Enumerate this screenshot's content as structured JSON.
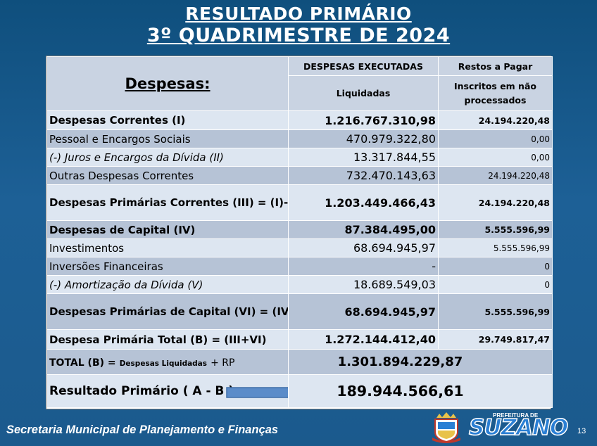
{
  "title": {
    "line1": "RESULTADO PRIMÁRIO",
    "line2": "3º QUADRIMESTRE DE 2024"
  },
  "table": {
    "header_label": "Despesas:",
    "col2_header": "DESPESAS EXECUTADAS",
    "col2_sub": "Liquidadas",
    "col3_header": "Restos a Pagar",
    "col3_sub": "Inscritos em não processados",
    "rows": [
      {
        "label": "Despesas Correntes (I)",
        "liquidadas": "1.216.767.310,98",
        "restos": "24.194.220,48"
      },
      {
        "label": "Pessoal e Encargos Sociais",
        "liquidadas": "470.979.322,80",
        "restos": "0,00"
      },
      {
        "label": "(-) Juros e Encargos da Dívida (II)",
        "liquidadas": "13.317.844,55",
        "restos": "0,00"
      },
      {
        "label": "Outras Despesas Correntes",
        "liquidadas": "732.470.143,63",
        "restos": "24.194.220,48"
      },
      {
        "label": "Despesas Primárias Correntes (III) = (I)-(II)",
        "liquidadas": "1.203.449.466,43",
        "restos": "24.194.220,48"
      },
      {
        "label": "Despesas de Capital (IV)",
        "liquidadas": "87.384.495,00",
        "restos": "5.555.596,99"
      },
      {
        "label": "Investimentos",
        "liquidadas": "68.694.945,97",
        "restos": "5.555.596,99"
      },
      {
        "label": "Inversões Financeiras",
        "liquidadas": "-",
        "restos": "0"
      },
      {
        "label": "(-) Amortização da Dívida (V)",
        "liquidadas": "18.689.549,03",
        "restos": "0"
      },
      {
        "label": "Despesas Primárias de Capital  (VI) = (IV-V)",
        "liquidadas": "68.694.945,97",
        "restos": "5.555.596,99"
      },
      {
        "label": "Despesa Primária Total (B) = (III+VI)",
        "liquidadas": "1.272.144.412,40",
        "restos": "29.749.817,47"
      }
    ],
    "total": {
      "label_main": "TOTAL (B) =",
      "label_small": "Despesas Liquidadas",
      "label_tail": "+ RP",
      "value": "1.301.894.229,87"
    },
    "result": {
      "label": "Resultado Primário ( A - B )",
      "value": "189.944.566,61"
    }
  },
  "footer": {
    "department": "Secretaria Municipal de Planejamento e Finanças",
    "logo_top": "PREFEITURA DE",
    "logo_name": "SUZANO",
    "page_number": "13"
  },
  "colors": {
    "background": "#1b5a88",
    "header_cell": "#c9d3e2",
    "light_row": "#dde6f1",
    "dark_row": "#b6c3d6",
    "arrow": "#5b8cc9",
    "logo_text": "#2a7fd4"
  }
}
